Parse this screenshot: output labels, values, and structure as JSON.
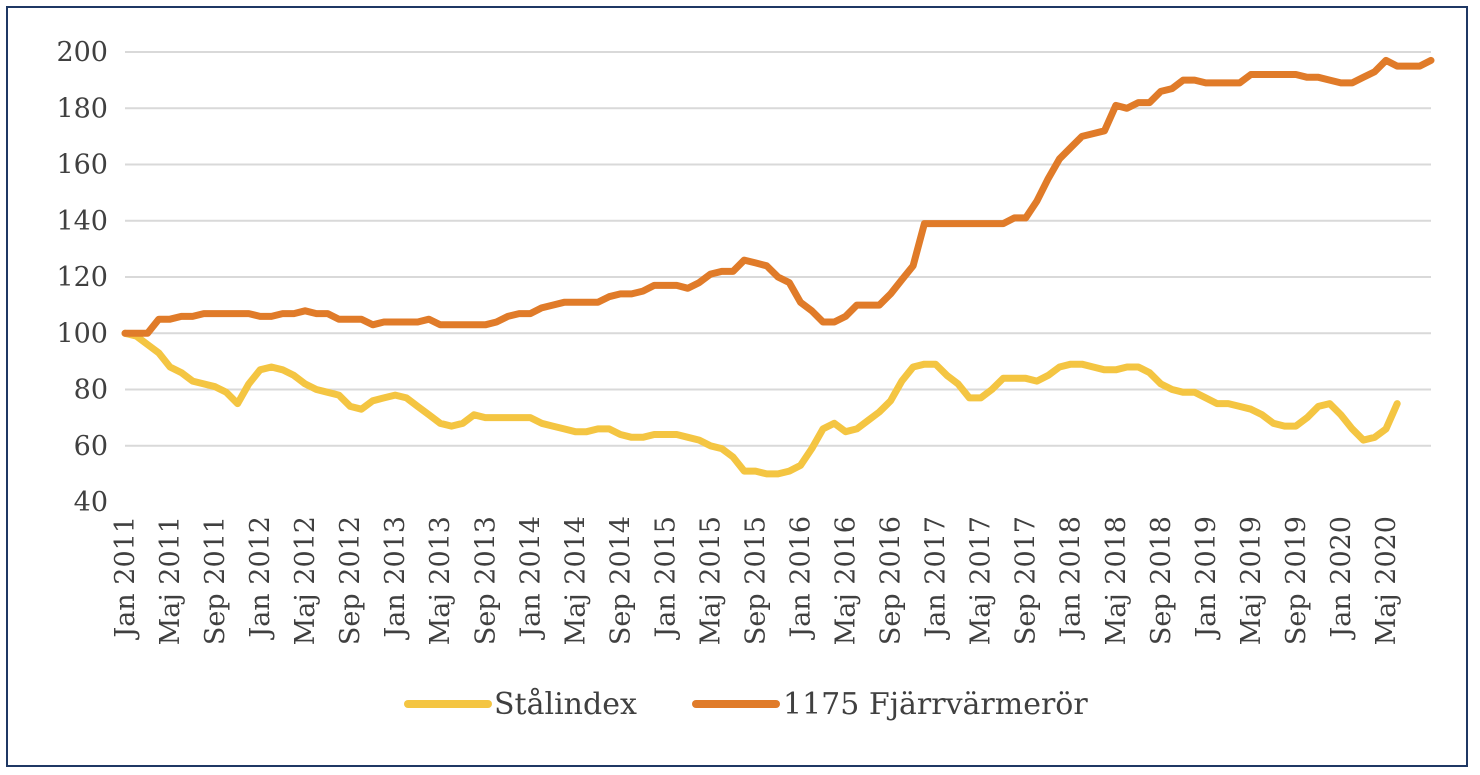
{
  "chart_data": {
    "type": "line",
    "title": "",
    "xlabel": "",
    "ylabel": "",
    "ylim": [
      40,
      200
    ],
    "yticks": [
      40,
      60,
      80,
      100,
      120,
      140,
      160,
      180,
      200
    ],
    "grid": true,
    "legend": "bottom",
    "x_start": "Jan 2011",
    "x_end": "Dec 2020",
    "x_tick_labels": [
      "Jan 2011",
      "Maj 2011",
      "Sep 2011",
      "Jan 2012",
      "Maj 2012",
      "Sep 2012",
      "Jan 2013",
      "Maj 2013",
      "Sep 2013",
      "Jan 2014",
      "Maj 2014",
      "Sep 2014",
      "Jan 2015",
      "Maj 2015",
      "Sep 2015",
      "Jan 2016",
      "Maj 2016",
      "Sep 2016",
      "Jan 2017",
      "Maj 2017",
      "Sep 2017",
      "Jan 2018",
      "Maj 2018",
      "Sep 2018",
      "Jan 2019",
      "Maj 2019",
      "Sep 2019",
      "Jan 2020",
      "Maj 2020"
    ],
    "series": [
      {
        "name": "Stålindex",
        "color": "#f4c542",
        "values": [
          100,
          99,
          96,
          93,
          88,
          86,
          83,
          82,
          81,
          79,
          75,
          82,
          87,
          88,
          87,
          85,
          82,
          80,
          79,
          78,
          74,
          73,
          76,
          77,
          78,
          77,
          74,
          71,
          68,
          67,
          68,
          71,
          70,
          70,
          70,
          70,
          70,
          68,
          67,
          66,
          65,
          65,
          66,
          66,
          64,
          63,
          63,
          64,
          64,
          64,
          63,
          62,
          60,
          59,
          56,
          51,
          51,
          50,
          50,
          51,
          53,
          59,
          66,
          68,
          65,
          66,
          69,
          72,
          76,
          83,
          88,
          89,
          89,
          85,
          82,
          77,
          77,
          80,
          84,
          84,
          84,
          83,
          85,
          88,
          89,
          89,
          88,
          87,
          87,
          88,
          88,
          86,
          82,
          80,
          79,
          79,
          77,
          75,
          75,
          74,
          73,
          71,
          68,
          67,
          67,
          70,
          74,
          75,
          71,
          66,
          62,
          63,
          66,
          75
        ]
      },
      {
        "name": "1175 Fjärrvärmerör",
        "color": "#e07b29",
        "values": [
          100,
          100,
          100,
          105,
          105,
          106,
          106,
          107,
          107,
          107,
          107,
          107,
          106,
          106,
          107,
          107,
          108,
          107,
          107,
          105,
          105,
          105,
          103,
          104,
          104,
          104,
          104,
          105,
          103,
          103,
          103,
          103,
          103,
          104,
          106,
          107,
          107,
          109,
          110,
          111,
          111,
          111,
          111,
          113,
          114,
          114,
          115,
          117,
          117,
          117,
          116,
          118,
          121,
          122,
          122,
          126,
          125,
          124,
          120,
          118,
          111,
          108,
          104,
          104,
          106,
          110,
          110,
          110,
          114,
          119,
          124,
          139,
          139,
          139,
          139,
          139,
          139,
          139,
          139,
          141,
          141,
          147,
          155,
          162,
          166,
          170,
          171,
          172,
          181,
          180,
          182,
          182,
          186,
          187,
          190,
          190,
          189,
          189,
          189,
          189,
          192,
          192,
          192,
          192,
          192,
          191,
          191,
          190,
          189,
          189,
          191,
          193,
          197,
          195,
          195,
          195,
          197
        ]
      }
    ]
  }
}
